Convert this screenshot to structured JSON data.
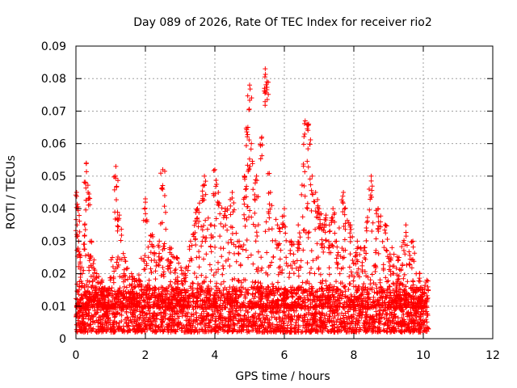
{
  "chart_data": {
    "type": "scatter",
    "title": "Day 089 of 2026, Rate Of TEC Index for receiver rio2",
    "xlabel": "GPS time / hours",
    "ylabel": "ROTI / TECUs",
    "xlim": [
      0,
      12
    ],
    "ylim": [
      0,
      0.09
    ],
    "x_ticks": [
      0,
      2,
      4,
      6,
      8,
      10,
      12
    ],
    "x_tick_labels": [
      "0",
      "2",
      "4",
      "6",
      "8",
      "10",
      "12"
    ],
    "y_ticks": [
      0,
      0.01,
      0.02,
      0.03,
      0.04,
      0.05,
      0.06,
      0.07,
      0.08,
      0.09
    ],
    "y_tick_labels": [
      "0",
      "0.01",
      "0.02",
      "0.03",
      "0.04",
      "0.05",
      "0.06",
      "0.07",
      "0.08",
      "0.09"
    ],
    "grid": true,
    "marker": "+",
    "color": "#ff0000",
    "series": [
      {
        "x": [
          0.02,
          0.05,
          0.08,
          0.12,
          0.18,
          0.25,
          0.3,
          0.35,
          0.45,
          0.6,
          0.75,
          0.9,
          1.05,
          1.15,
          1.25,
          1.4,
          1.6,
          1.8,
          2.0,
          2.2,
          2.4,
          2.5,
          2.7,
          2.9,
          3.1,
          3.3,
          3.5,
          3.7,
          3.9,
          4.0,
          4.1,
          4.3,
          4.5,
          4.7,
          4.85,
          4.95,
          5.0,
          5.05,
          5.2,
          5.35,
          5.45,
          5.5,
          5.6,
          5.8,
          6.0,
          6.2,
          6.4,
          6.6,
          6.7,
          6.8,
          6.9,
          7.0,
          7.1,
          7.2,
          7.3,
          7.4,
          7.5,
          7.7,
          7.9,
          8.1,
          8.3,
          8.5,
          8.7,
          8.9,
          9.1,
          9.3,
          9.5,
          9.7,
          9.9,
          10.1
        ],
        "y": [
          0.045,
          0.04,
          0.03,
          0.025,
          0.02,
          0.035,
          0.054,
          0.045,
          0.03,
          0.02,
          0.018,
          0.015,
          0.025,
          0.053,
          0.038,
          0.025,
          0.02,
          0.018,
          0.043,
          0.032,
          0.03,
          0.052,
          0.028,
          0.025,
          0.02,
          0.03,
          0.04,
          0.05,
          0.035,
          0.052,
          0.045,
          0.04,
          0.045,
          0.03,
          0.05,
          0.065,
          0.078,
          0.06,
          0.05,
          0.062,
          0.083,
          0.079,
          0.045,
          0.035,
          0.04,
          0.03,
          0.035,
          0.067,
          0.066,
          0.05,
          0.045,
          0.04,
          0.035,
          0.038,
          0.035,
          0.04,
          0.03,
          0.045,
          0.035,
          0.03,
          0.028,
          0.05,
          0.04,
          0.035,
          0.028,
          0.025,
          0.035,
          0.03,
          0.02,
          0.018
        ]
      }
    ],
    "baseline_band": {
      "x_start": 0.0,
      "x_end": 10.15,
      "y_min": 0.002,
      "y_max": 0.016
    }
  }
}
